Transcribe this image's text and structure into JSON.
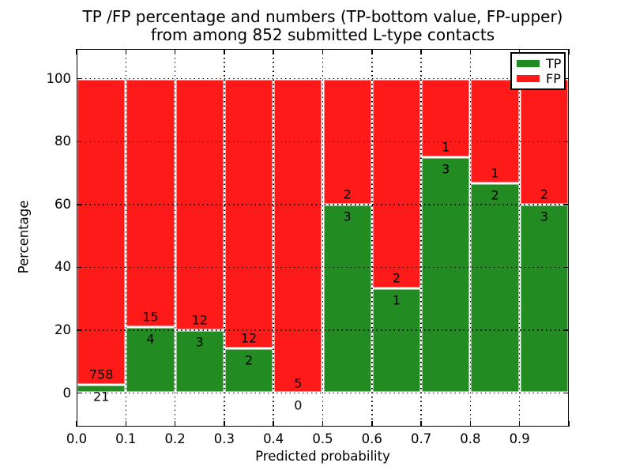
{
  "figure": {
    "background": "#ffffff"
  },
  "chart_data": {
    "type": "bar",
    "stacked": true,
    "orientation": "vertical",
    "title_lines": [
      "TP /FP percentage and numbers (TP-bottom value, FP-upper)",
      "from among 852 submitted L-type contacts"
    ],
    "xlabel": "Predicted probability",
    "ylabel": "Percentage",
    "x_tick_labels": [
      "0.0",
      "0.1",
      "0.2",
      "0.3",
      "0.4",
      "0.5",
      "0.6",
      "0.7",
      "0.8",
      "0.9"
    ],
    "y_tick_labels": [
      "0",
      "20",
      "40",
      "60",
      "80",
      "100"
    ],
    "y_tick_values": [
      0,
      20,
      40,
      60,
      80,
      100
    ],
    "xlim": [
      0.0,
      1.0
    ],
    "bin_width": 0.1,
    "categories": [
      "0.0-0.1",
      "0.1-0.2",
      "0.2-0.3",
      "0.3-0.4",
      "0.4-0.5",
      "0.5-0.6",
      "0.6-0.7",
      "0.7-0.8",
      "0.8-0.9",
      "0.9-1.0"
    ],
    "series": [
      {
        "name": "TP",
        "color": "#228b22",
        "counts": [
          21,
          4,
          3,
          2,
          0,
          3,
          1,
          3,
          2,
          3
        ],
        "pct": [
          2.7,
          21.05,
          20.0,
          14.29,
          0.0,
          60.0,
          33.33,
          75.0,
          66.67,
          60.0
        ]
      },
      {
        "name": "FP",
        "color": "#ff1a1a",
        "counts": [
          758,
          15,
          12,
          12,
          5,
          2,
          2,
          1,
          1,
          2
        ],
        "pct": [
          97.3,
          78.95,
          80.0,
          85.71,
          100.0,
          40.0,
          66.67,
          25.0,
          33.33,
          40.0
        ]
      }
    ],
    "legend": {
      "position": "upper right"
    },
    "grid": {
      "style": "dotted",
      "color": "#000000"
    },
    "bar_edge_color": "#ffffff",
    "annotation_note": "FP count shown above TP/FP boundary, TP count below"
  }
}
